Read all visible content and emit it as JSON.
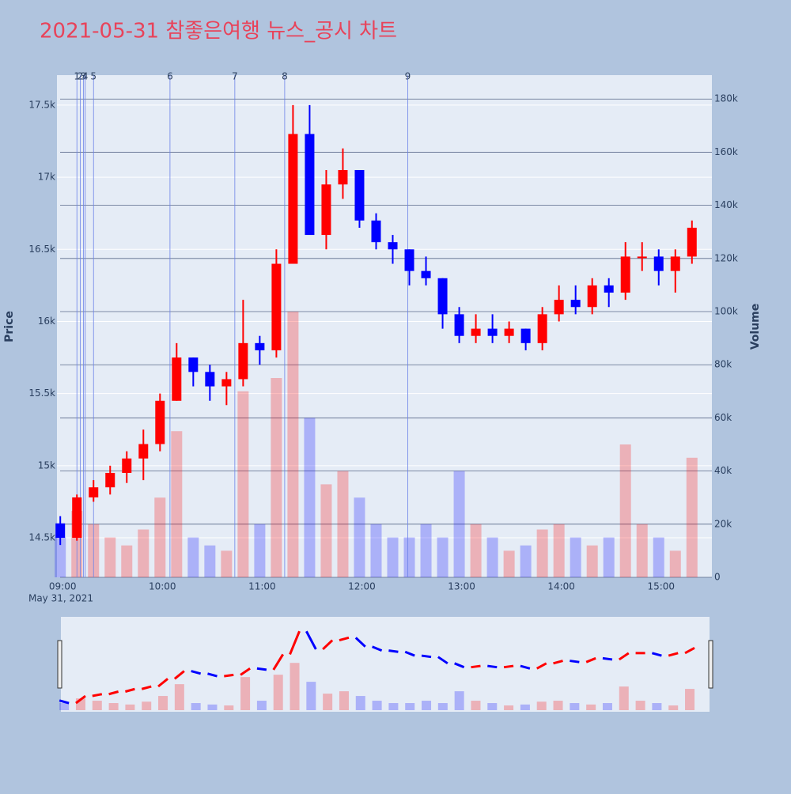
{
  "chart_data": {
    "type": "candlestick",
    "title": "2021-05-31 참좋은여행 뉴스_공시 차트",
    "y_label": "Price",
    "y2_label": "Volume",
    "x_date_label": "May 31, 2021",
    "up_color": "#ff0000",
    "down_color": "#0000ff",
    "x": [
      "09:00",
      "09:10",
      "09:20",
      "09:30",
      "09:40",
      "09:50",
      "10:00",
      "10:10",
      "10:20",
      "10:30",
      "10:40",
      "10:50",
      "11:00",
      "11:10",
      "11:20",
      "11:30",
      "11:40",
      "11:50",
      "12:00",
      "12:10",
      "12:20",
      "12:30",
      "12:40",
      "12:50",
      "13:00",
      "13:10",
      "13:20",
      "13:30",
      "13:40",
      "13:50",
      "14:00",
      "14:10",
      "14:20",
      "14:30",
      "14:40",
      "14:50",
      "15:00",
      "15:10",
      "15:20"
    ],
    "open": [
      14600,
      14500,
      14780,
      14850,
      14950,
      15050,
      15150,
      15450,
      15750,
      15650,
      15550,
      15600,
      15850,
      15800,
      16400,
      17300,
      16600,
      16950,
      17050,
      16700,
      16550,
      16500,
      16350,
      16300,
      16050,
      15900,
      15950,
      15900,
      15950,
      15850,
      16050,
      16150,
      16100,
      16250,
      16200,
      16450,
      16450,
      16350,
      16450
    ],
    "high": [
      14650,
      14800,
      14900,
      15000,
      15100,
      15250,
      15500,
      15850,
      15750,
      15700,
      15650,
      16150,
      15900,
      16500,
      17500,
      17500,
      17050,
      17200,
      17050,
      16750,
      16600,
      16500,
      16450,
      16300,
      16100,
      16050,
      16050,
      16000,
      15950,
      16100,
      16250,
      16250,
      16300,
      16300,
      16550,
      16550,
      16500,
      16500,
      16700
    ],
    "low": [
      14450,
      14480,
      14750,
      14800,
      14880,
      14900,
      15100,
      15450,
      15550,
      15450,
      15420,
      15550,
      15700,
      15750,
      16400,
      16600,
      16500,
      16850,
      16650,
      16500,
      16400,
      16250,
      16250,
      15950,
      15850,
      15850,
      15850,
      15850,
      15800,
      15800,
      16000,
      16050,
      16050,
      16100,
      16150,
      16350,
      16250,
      16200,
      16400
    ],
    "close": [
      14500,
      14780,
      14850,
      14950,
      15050,
      15150,
      15450,
      15750,
      15650,
      15550,
      15600,
      15850,
      15800,
      16400,
      17300,
      16600,
      16950,
      17050,
      16700,
      16550,
      16500,
      16350,
      16300,
      16050,
      15900,
      15950,
      15900,
      15950,
      15850,
      16050,
      16150,
      16100,
      16250,
      16200,
      16450,
      16450,
      16350,
      16450,
      16650
    ],
    "volume": [
      15000,
      25000,
      20000,
      15000,
      12000,
      18000,
      30000,
      55000,
      15000,
      12000,
      10000,
      70000,
      20000,
      75000,
      100000,
      60000,
      35000,
      40000,
      30000,
      20000,
      15000,
      15000,
      20000,
      15000,
      40000,
      20000,
      15000,
      10000,
      12000,
      18000,
      20000,
      15000,
      12000,
      15000,
      50000,
      20000,
      15000,
      10000,
      45000
    ],
    "xlim": [
      "08:58",
      "15:32"
    ],
    "xticks": [
      "09:00",
      "10:00",
      "11:00",
      "12:00",
      "13:00",
      "14:00",
      "15:00"
    ],
    "ylim": [
      14226,
      17708
    ],
    "yticks": [
      {
        "value": 14500,
        "label": "14.5k"
      },
      {
        "value": 15000,
        "label": "15k"
      },
      {
        "value": 15500,
        "label": "15.5k"
      },
      {
        "value": 16000,
        "label": "16k"
      },
      {
        "value": 16500,
        "label": "16.5k"
      },
      {
        "value": 17000,
        "label": "17k"
      },
      {
        "value": 17500,
        "label": "17.5k"
      }
    ],
    "y2lim": [
      0,
      189000
    ],
    "y2ticks": [
      0,
      {
        "value": 20000,
        "label": "20k"
      },
      {
        "value": 40000,
        "label": "40k"
      },
      {
        "value": 60000,
        "label": "60k"
      },
      {
        "value": 80000,
        "label": "80k"
      },
      {
        "value": 100000,
        "label": "100k"
      },
      {
        "value": 120000,
        "label": "120k"
      },
      {
        "value": 140000,
        "label": "140k"
      },
      {
        "value": 160000,
        "label": "160k"
      },
      {
        "value": 180000,
        "label": "180k"
      }
    ],
    "news": [
      {
        "label": "1",
        "x": "09:10"
      },
      {
        "label": "2",
        "x": "09:12"
      },
      {
        "label": "3",
        "x": "09:14"
      },
      {
        "label": "4",
        "x": "09:15"
      },
      {
        "label": "5",
        "x": "09:20"
      },
      {
        "label": "6",
        "x": "10:06"
      },
      {
        "label": "7",
        "x": "10:45"
      },
      {
        "label": "8",
        "x": "11:15"
      },
      {
        "label": "9",
        "x": "12:29"
      }
    ]
  }
}
